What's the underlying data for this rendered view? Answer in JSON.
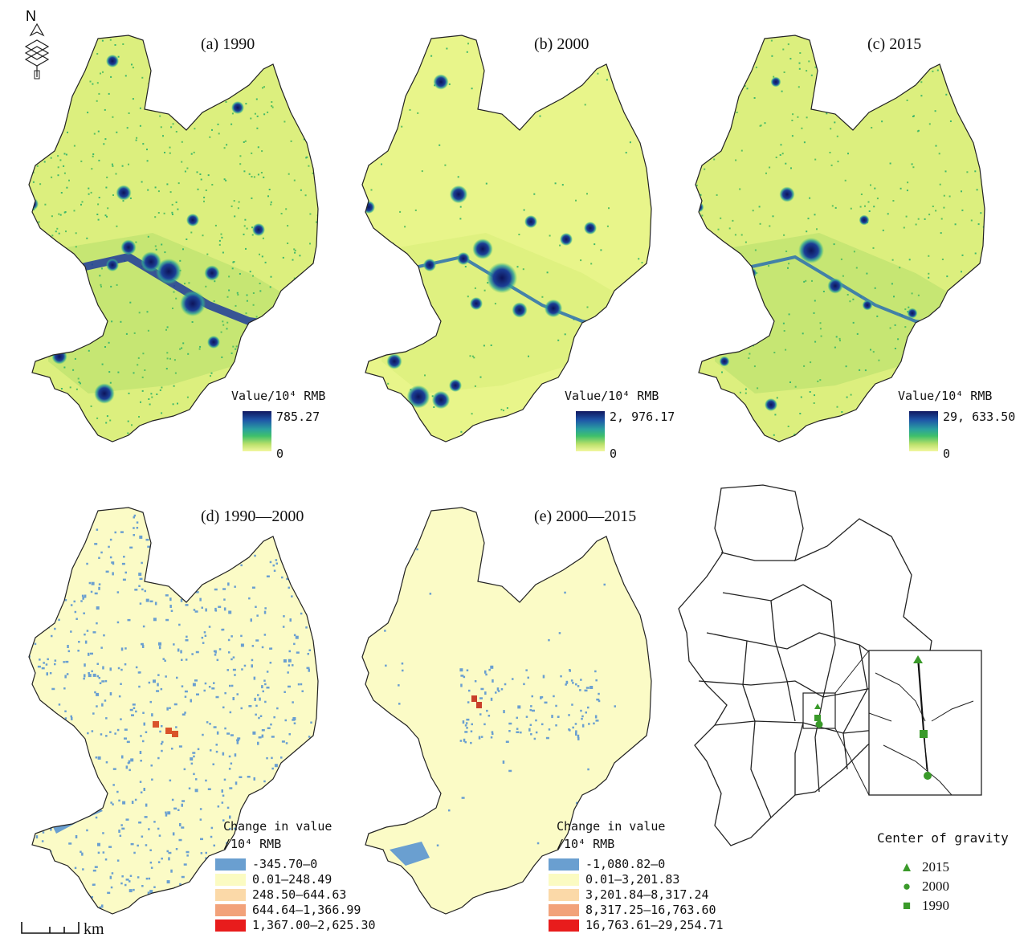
{
  "panels": [
    {
      "title": "(a) 1990",
      "legend_title": "Value/10⁴ RMB",
      "max": "785.27",
      "min": "0",
      "style": "value"
    },
    {
      "title": "(b) 2000",
      "legend_title": "Value/10⁴ RMB",
      "max": "2, 976.17",
      "min": "0",
      "style": "value"
    },
    {
      "title": "(c) 2015",
      "legend_title": "Value/10⁴ RMB",
      "max": "29, 633.50",
      "min": "0",
      "style": "value"
    },
    {
      "title": "(d) 1990—2000",
      "legend_title_1": "Change in value",
      "legend_title_2": "/10⁴ RMB",
      "style": "change",
      "classes": [
        {
          "label": "-345.70—0",
          "color": "#6a9fd0"
        },
        {
          "label": "0.01—248.49",
          "color": "#fbfbc2"
        },
        {
          "label": "248.50—644.63",
          "color": "#fbd9a8"
        },
        {
          "label": "644.64—1,366.99",
          "color": "#f2a27a"
        },
        {
          "label": "1,367.00—2,625.30",
          "color": "#e81c1c"
        }
      ]
    },
    {
      "title": "(e) 2000—2015",
      "legend_title_1": "Change in value",
      "legend_title_2": "/10⁴ RMB",
      "style": "change",
      "classes": [
        {
          "label": "-1,080.82—0",
          "color": "#6a9fd0"
        },
        {
          "label": "0.01—3,201.83",
          "color": "#fbfbc2"
        },
        {
          "label": "3,201.84—8,317.24",
          "color": "#fbd9a8"
        },
        {
          "label": "8,317.25—16,763.60",
          "color": "#f2a27a"
        },
        {
          "label": "16,763.61—29,254.71",
          "color": "#e81c1c"
        }
      ]
    }
  ],
  "gravity": {
    "title": "Center of gravity",
    "items": [
      {
        "label": "2015",
        "symbol": "triangle"
      },
      {
        "label": "2000",
        "symbol": "circle"
      },
      {
        "label": "1990",
        "symbol": "square"
      }
    ],
    "color": "#3a9a2a"
  },
  "scale_unit": "km",
  "north": "N"
}
